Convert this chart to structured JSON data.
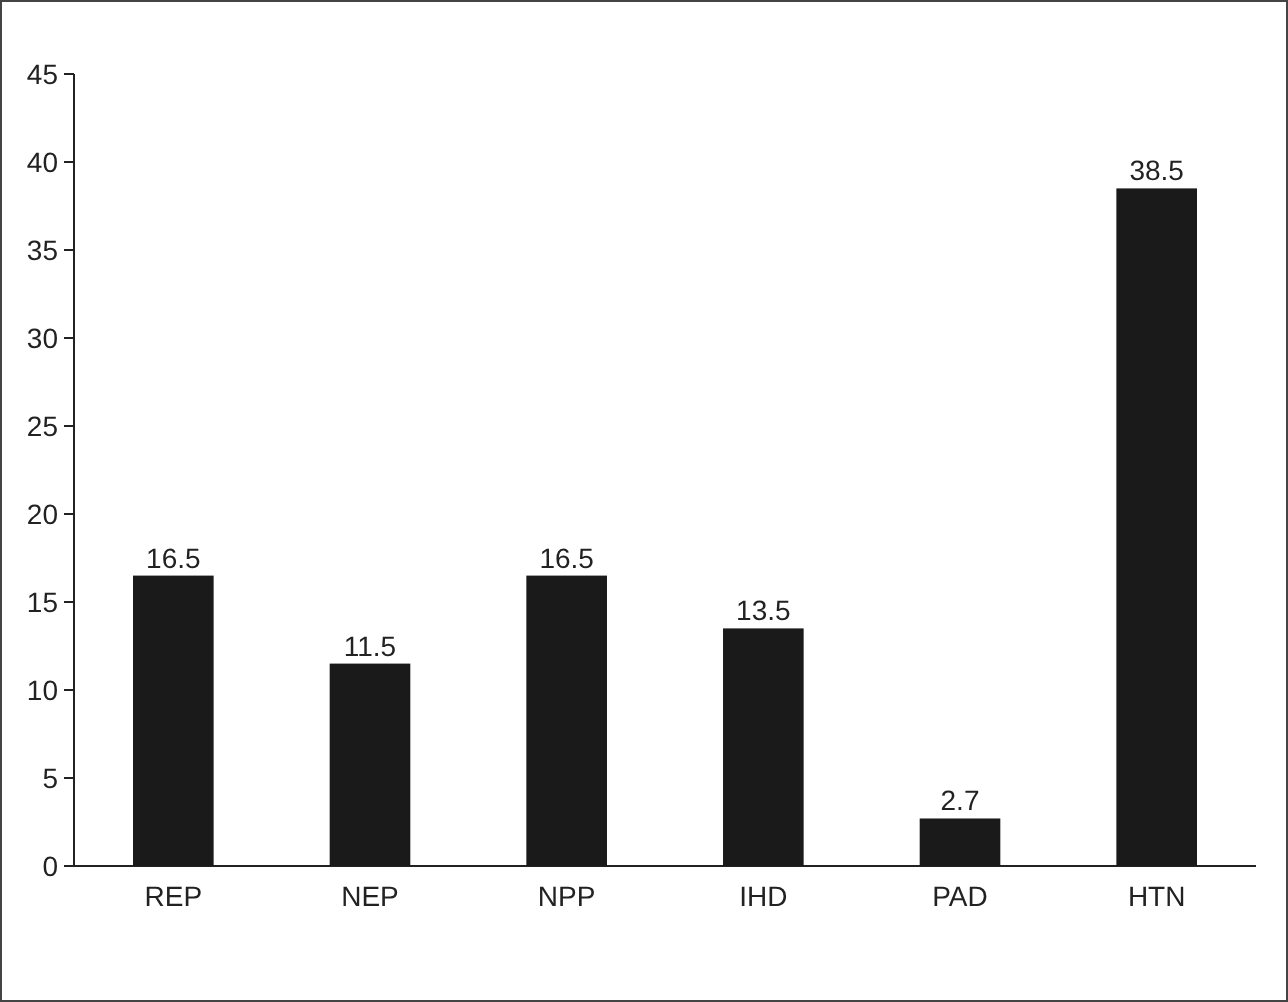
{
  "chart_data": {
    "type": "bar",
    "categories": [
      "REP",
      "NEP",
      "NPP",
      "IHD",
      "PAD",
      "HTN"
    ],
    "values": [
      16.5,
      11.5,
      16.5,
      13.5,
      2.7,
      38.5
    ],
    "color": "#1a1a1a",
    "data_labels": true,
    "ylim": [
      0,
      45
    ],
    "yticks": [
      0,
      5,
      10,
      15,
      20,
      25,
      30,
      35,
      40,
      45
    ]
  }
}
